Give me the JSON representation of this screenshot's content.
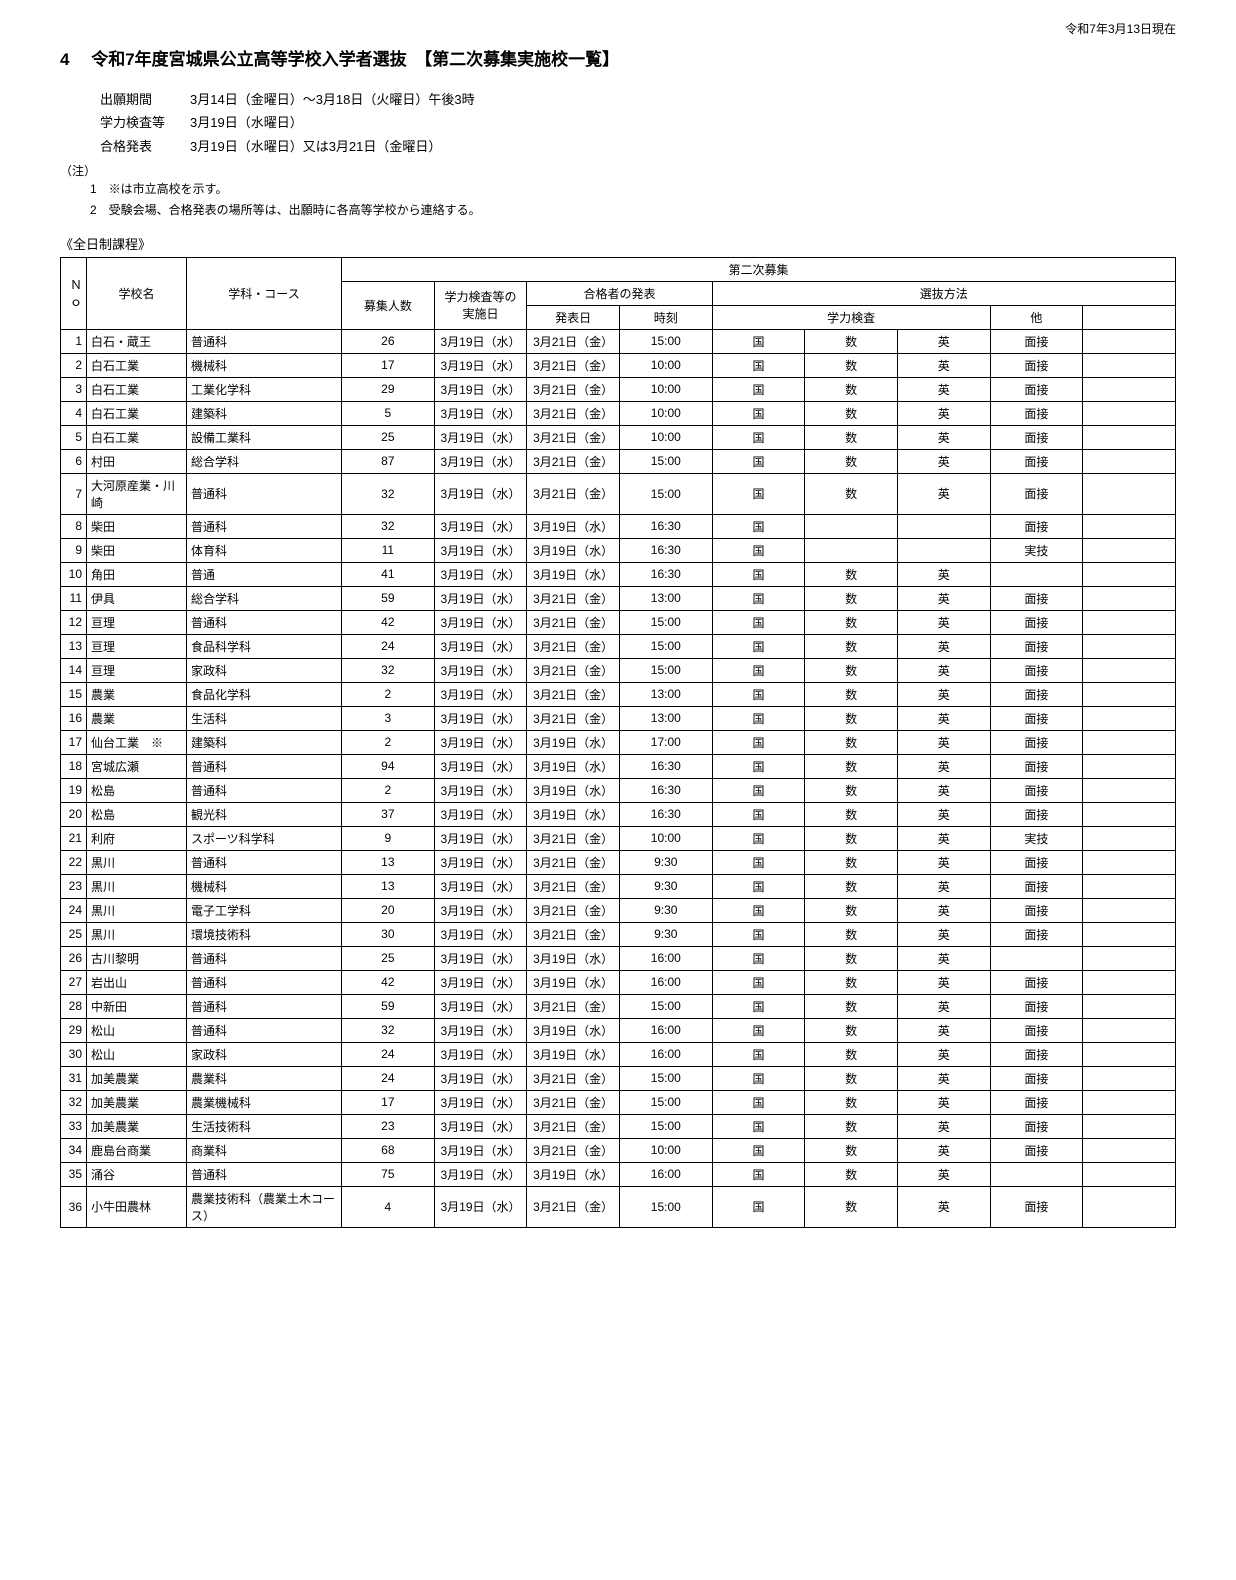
{
  "dateHeader": "令和7年3月13日現在",
  "titleNum": "4",
  "title": "令和7年度宮城県公立高等学校入学者選抜　【第二次募集実施校一覧】",
  "info": [
    {
      "label": "出願期間",
      "value": "3月14日（金曜日）～3月18日（火曜日）午後3時"
    },
    {
      "label": "学力検査等",
      "value": "3月19日（水曜日）"
    },
    {
      "label": "合格発表",
      "value": "3月19日（水曜日）又は3月21日（金曜日）"
    }
  ],
  "noteLabel": "（注）",
  "notes": [
    "1　※は市立高校を示す。",
    "2　受験会場、合格発表の場所等は、出願時に各高等学校から連絡する。"
  ],
  "sectionSub": "《全日制課程》",
  "headers": {
    "no": "Ｎｏ",
    "school": "学校名",
    "dept": "学科・コース",
    "secondRound": "第二次募集",
    "capacity": "募集人数",
    "examDate": "学力検査等の\n実施日",
    "announce": "合格者の発表",
    "announceDate": "発表日",
    "announceTime": "時刻",
    "method": "選抜方法",
    "academic": "学力検査",
    "other": "他"
  },
  "rows": [
    {
      "no": "1",
      "school": "白石・蔵王",
      "dept": "普通科",
      "cap": "26",
      "exam": "3月19日（水）",
      "annc": "3月21日（金）",
      "time": "15:00",
      "sub": [
        "国",
        "数",
        "英"
      ],
      "other": "面接"
    },
    {
      "no": "2",
      "school": "白石工業",
      "dept": "機械科",
      "cap": "17",
      "exam": "3月19日（水）",
      "annc": "3月21日（金）",
      "time": "10:00",
      "sub": [
        "国",
        "数",
        "英"
      ],
      "other": "面接"
    },
    {
      "no": "3",
      "school": "白石工業",
      "dept": "工業化学科",
      "cap": "29",
      "exam": "3月19日（水）",
      "annc": "3月21日（金）",
      "time": "10:00",
      "sub": [
        "国",
        "数",
        "英"
      ],
      "other": "面接"
    },
    {
      "no": "4",
      "school": "白石工業",
      "dept": "建築科",
      "cap": "5",
      "exam": "3月19日（水）",
      "annc": "3月21日（金）",
      "time": "10:00",
      "sub": [
        "国",
        "数",
        "英"
      ],
      "other": "面接"
    },
    {
      "no": "5",
      "school": "白石工業",
      "dept": "設備工業科",
      "cap": "25",
      "exam": "3月19日（水）",
      "annc": "3月21日（金）",
      "time": "10:00",
      "sub": [
        "国",
        "数",
        "英"
      ],
      "other": "面接"
    },
    {
      "no": "6",
      "school": "村田",
      "dept": "総合学科",
      "cap": "87",
      "exam": "3月19日（水）",
      "annc": "3月21日（金）",
      "time": "15:00",
      "sub": [
        "国",
        "数",
        "英"
      ],
      "other": "面接"
    },
    {
      "no": "7",
      "school": "大河原産業・川崎",
      "dept": "普通科",
      "cap": "32",
      "exam": "3月19日（水）",
      "annc": "3月21日（金）",
      "time": "15:00",
      "sub": [
        "国",
        "数",
        "英"
      ],
      "other": "面接"
    },
    {
      "no": "8",
      "school": "柴田",
      "dept": "普通科",
      "cap": "32",
      "exam": "3月19日（水）",
      "annc": "3月19日（水）",
      "time": "16:30",
      "sub": [
        "国",
        "",
        ""
      ],
      "other": "面接"
    },
    {
      "no": "9",
      "school": "柴田",
      "dept": "体育科",
      "cap": "11",
      "exam": "3月19日（水）",
      "annc": "3月19日（水）",
      "time": "16:30",
      "sub": [
        "国",
        "",
        ""
      ],
      "other": "実技"
    },
    {
      "no": "10",
      "school": "角田",
      "dept": "普通",
      "cap": "41",
      "exam": "3月19日（水）",
      "annc": "3月19日（水）",
      "time": "16:30",
      "sub": [
        "国",
        "数",
        "英"
      ],
      "other": ""
    },
    {
      "no": "11",
      "school": "伊具",
      "dept": "総合学科",
      "cap": "59",
      "exam": "3月19日（水）",
      "annc": "3月21日（金）",
      "time": "13:00",
      "sub": [
        "国",
        "数",
        "英"
      ],
      "other": "面接"
    },
    {
      "no": "12",
      "school": "亘理",
      "dept": "普通科",
      "cap": "42",
      "exam": "3月19日（水）",
      "annc": "3月21日（金）",
      "time": "15:00",
      "sub": [
        "国",
        "数",
        "英"
      ],
      "other": "面接"
    },
    {
      "no": "13",
      "school": "亘理",
      "dept": "食品科学科",
      "cap": "24",
      "exam": "3月19日（水）",
      "annc": "3月21日（金）",
      "time": "15:00",
      "sub": [
        "国",
        "数",
        "英"
      ],
      "other": "面接"
    },
    {
      "no": "14",
      "school": "亘理",
      "dept": "家政科",
      "cap": "32",
      "exam": "3月19日（水）",
      "annc": "3月21日（金）",
      "time": "15:00",
      "sub": [
        "国",
        "数",
        "英"
      ],
      "other": "面接"
    },
    {
      "no": "15",
      "school": "農業",
      "dept": "食品化学科",
      "cap": "2",
      "exam": "3月19日（水）",
      "annc": "3月21日（金）",
      "time": "13:00",
      "sub": [
        "国",
        "数",
        "英"
      ],
      "other": "面接"
    },
    {
      "no": "16",
      "school": "農業",
      "dept": "生活科",
      "cap": "3",
      "exam": "3月19日（水）",
      "annc": "3月21日（金）",
      "time": "13:00",
      "sub": [
        "国",
        "数",
        "英"
      ],
      "other": "面接"
    },
    {
      "no": "17",
      "school": "仙台工業　※",
      "dept": "建築科",
      "cap": "2",
      "exam": "3月19日（水）",
      "annc": "3月19日（水）",
      "time": "17:00",
      "sub": [
        "国",
        "数",
        "英"
      ],
      "other": "面接"
    },
    {
      "no": "18",
      "school": "宮城広瀬",
      "dept": "普通科",
      "cap": "94",
      "exam": "3月19日（水）",
      "annc": "3月19日（水）",
      "time": "16:30",
      "sub": [
        "国",
        "数",
        "英"
      ],
      "other": "面接"
    },
    {
      "no": "19",
      "school": "松島",
      "dept": "普通科",
      "cap": "2",
      "exam": "3月19日（水）",
      "annc": "3月19日（水）",
      "time": "16:30",
      "sub": [
        "国",
        "数",
        "英"
      ],
      "other": "面接"
    },
    {
      "no": "20",
      "school": "松島",
      "dept": "観光科",
      "cap": "37",
      "exam": "3月19日（水）",
      "annc": "3月19日（水）",
      "time": "16:30",
      "sub": [
        "国",
        "数",
        "英"
      ],
      "other": "面接"
    },
    {
      "no": "21",
      "school": "利府",
      "dept": "スポーツ科学科",
      "cap": "9",
      "exam": "3月19日（水）",
      "annc": "3月21日（金）",
      "time": "10:00",
      "sub": [
        "国",
        "数",
        "英"
      ],
      "other": "実技"
    },
    {
      "no": "22",
      "school": "黒川",
      "dept": "普通科",
      "cap": "13",
      "exam": "3月19日（水）",
      "annc": "3月21日（金）",
      "time": "9:30",
      "sub": [
        "国",
        "数",
        "英"
      ],
      "other": "面接"
    },
    {
      "no": "23",
      "school": "黒川",
      "dept": "機械科",
      "cap": "13",
      "exam": "3月19日（水）",
      "annc": "3月21日（金）",
      "time": "9:30",
      "sub": [
        "国",
        "数",
        "英"
      ],
      "other": "面接"
    },
    {
      "no": "24",
      "school": "黒川",
      "dept": "電子工学科",
      "cap": "20",
      "exam": "3月19日（水）",
      "annc": "3月21日（金）",
      "time": "9:30",
      "sub": [
        "国",
        "数",
        "英"
      ],
      "other": "面接"
    },
    {
      "no": "25",
      "school": "黒川",
      "dept": "環境技術科",
      "cap": "30",
      "exam": "3月19日（水）",
      "annc": "3月21日（金）",
      "time": "9:30",
      "sub": [
        "国",
        "数",
        "英"
      ],
      "other": "面接"
    },
    {
      "no": "26",
      "school": "古川黎明",
      "dept": "普通科",
      "cap": "25",
      "exam": "3月19日（水）",
      "annc": "3月19日（水）",
      "time": "16:00",
      "sub": [
        "国",
        "数",
        "英"
      ],
      "other": ""
    },
    {
      "no": "27",
      "school": "岩出山",
      "dept": "普通科",
      "cap": "42",
      "exam": "3月19日（水）",
      "annc": "3月19日（水）",
      "time": "16:00",
      "sub": [
        "国",
        "数",
        "英"
      ],
      "other": "面接"
    },
    {
      "no": "28",
      "school": "中新田",
      "dept": "普通科",
      "cap": "59",
      "exam": "3月19日（水）",
      "annc": "3月21日（金）",
      "time": "15:00",
      "sub": [
        "国",
        "数",
        "英"
      ],
      "other": "面接"
    },
    {
      "no": "29",
      "school": "松山",
      "dept": "普通科",
      "cap": "32",
      "exam": "3月19日（水）",
      "annc": "3月19日（水）",
      "time": "16:00",
      "sub": [
        "国",
        "数",
        "英"
      ],
      "other": "面接"
    },
    {
      "no": "30",
      "school": "松山",
      "dept": "家政科",
      "cap": "24",
      "exam": "3月19日（水）",
      "annc": "3月19日（水）",
      "time": "16:00",
      "sub": [
        "国",
        "数",
        "英"
      ],
      "other": "面接"
    },
    {
      "no": "31",
      "school": "加美農業",
      "dept": "農業科",
      "cap": "24",
      "exam": "3月19日（水）",
      "annc": "3月21日（金）",
      "time": "15:00",
      "sub": [
        "国",
        "数",
        "英"
      ],
      "other": "面接"
    },
    {
      "no": "32",
      "school": "加美農業",
      "dept": "農業機械科",
      "cap": "17",
      "exam": "3月19日（水）",
      "annc": "3月21日（金）",
      "time": "15:00",
      "sub": [
        "国",
        "数",
        "英"
      ],
      "other": "面接"
    },
    {
      "no": "33",
      "school": "加美農業",
      "dept": "生活技術科",
      "cap": "23",
      "exam": "3月19日（水）",
      "annc": "3月21日（金）",
      "time": "15:00",
      "sub": [
        "国",
        "数",
        "英"
      ],
      "other": "面接"
    },
    {
      "no": "34",
      "school": "鹿島台商業",
      "dept": "商業科",
      "cap": "68",
      "exam": "3月19日（水）",
      "annc": "3月21日（金）",
      "time": "10:00",
      "sub": [
        "国",
        "数",
        "英"
      ],
      "other": "面接"
    },
    {
      "no": "35",
      "school": "涌谷",
      "dept": "普通科",
      "cap": "75",
      "exam": "3月19日（水）",
      "annc": "3月19日（水）",
      "time": "16:00",
      "sub": [
        "国",
        "数",
        "英"
      ],
      "other": ""
    },
    {
      "no": "36",
      "school": "小牛田農林",
      "dept": "農業技術科（農業土木コース）",
      "cap": "4",
      "exam": "3月19日（水）",
      "annc": "3月21日（金）",
      "time": "15:00",
      "sub": [
        "国",
        "数",
        "英"
      ],
      "other": "面接"
    }
  ]
}
